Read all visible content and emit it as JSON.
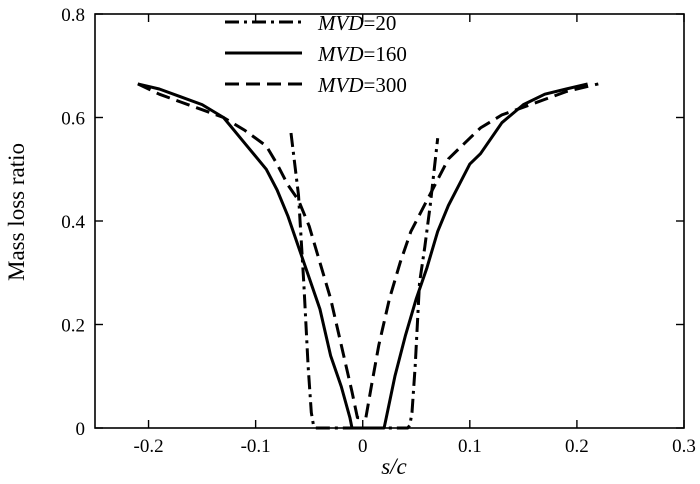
{
  "chart_data": {
    "type": "line",
    "title": "",
    "xlabel": "s/c",
    "ylabel": "Mass loss ratio",
    "xlim": [
      -0.25,
      0.3
    ],
    "ylim": [
      0,
      0.8
    ],
    "x_ticks": [
      -0.2,
      -0.1,
      0,
      0.1,
      0.2,
      0.3
    ],
    "x_tick_labels": [
      "-0.2",
      "-0.1",
      "0",
      "0.1",
      "0.2",
      "0.3"
    ],
    "y_ticks": [
      0,
      0.2,
      0.4,
      0.6,
      0.8
    ],
    "y_tick_labels": [
      "0",
      "0.2",
      "0.4",
      "0.6",
      "0.8"
    ],
    "grid": false,
    "legend_position": "top-center",
    "series": [
      {
        "name": "MVD=20",
        "label_italic": "MVD",
        "label_rest": "=20",
        "style": "dash-dot",
        "x": [
          -0.067,
          -0.06,
          -0.055,
          -0.051,
          -0.048,
          -0.046,
          -0.044,
          0,
          0.042,
          0.044,
          0.046,
          0.049,
          0.053,
          0.058,
          0.063,
          0.07
        ],
        "y": [
          0.57,
          0.45,
          0.28,
          0.12,
          0.03,
          0.005,
          0,
          0,
          0,
          0.005,
          0.03,
          0.12,
          0.28,
          0.35,
          0.43,
          0.56
        ]
      },
      {
        "name": "MVD=160",
        "label_italic": "MVD",
        "label_rest": "=160",
        "style": "solid",
        "x": [
          -0.21,
          -0.19,
          -0.17,
          -0.15,
          -0.13,
          -0.11,
          -0.09,
          -0.08,
          -0.07,
          -0.06,
          -0.05,
          -0.04,
          -0.03,
          -0.02,
          -0.012,
          -0.01,
          0.02,
          0.022,
          0.03,
          0.04,
          0.05,
          0.06,
          0.07,
          0.08,
          0.09,
          0.1,
          0.11,
          0.13,
          0.15,
          0.17,
          0.19,
          0.21
        ],
        "y": [
          0.665,
          0.655,
          0.64,
          0.625,
          0.6,
          0.55,
          0.5,
          0.46,
          0.41,
          0.35,
          0.29,
          0.23,
          0.14,
          0.08,
          0.02,
          0,
          0,
          0.02,
          0.1,
          0.18,
          0.25,
          0.31,
          0.38,
          0.43,
          0.47,
          0.51,
          0.53,
          0.59,
          0.625,
          0.645,
          0.655,
          0.665
        ]
      },
      {
        "name": "MVD=300",
        "label_italic": "MVD",
        "label_rest": "=300",
        "style": "dashed",
        "x": [
          -0.21,
          -0.19,
          -0.17,
          -0.15,
          -0.13,
          -0.11,
          -0.09,
          -0.08,
          -0.07,
          -0.06,
          -0.05,
          -0.04,
          -0.03,
          -0.02,
          -0.01,
          -0.005,
          0.003,
          0.008,
          0.015,
          0.025,
          0.035,
          0.045,
          0.06,
          0.07,
          0.08,
          0.09,
          0.1,
          0.11,
          0.13,
          0.15,
          0.17,
          0.19,
          0.22
        ],
        "y": [
          0.665,
          0.645,
          0.63,
          0.615,
          0.6,
          0.575,
          0.545,
          0.51,
          0.47,
          0.44,
          0.39,
          0.32,
          0.25,
          0.16,
          0.07,
          0.02,
          0.02,
          0.08,
          0.16,
          0.25,
          0.32,
          0.38,
          0.44,
          0.48,
          0.52,
          0.54,
          0.56,
          0.58,
          0.605,
          0.62,
          0.635,
          0.65,
          0.665
        ]
      }
    ]
  }
}
